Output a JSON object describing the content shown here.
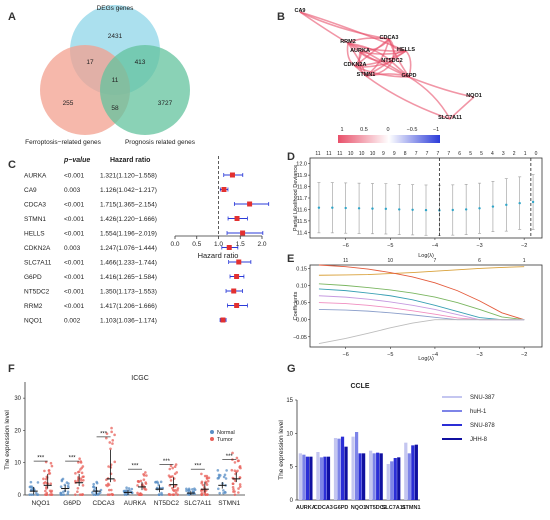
{
  "panels": {
    "A": "A",
    "B": "B",
    "C": "C",
    "D": "D",
    "E": "E",
    "F": "F",
    "G": "G"
  },
  "venn": {
    "labels": {
      "degs": "DEGs genes",
      "ferro": "Ferroptosis−related genes",
      "prog": "Prognosis related genes"
    },
    "counts": {
      "degs_only": "2431",
      "ferro_only": "255",
      "prog_only": "3727",
      "degs_ferro": "17",
      "degs_prog": "413",
      "ferro_prog": "58",
      "all": "11"
    },
    "colors": {
      "degs": "#8fd6e8",
      "ferro": "#f3a08f",
      "prog": "#63c39e"
    }
  },
  "network": {
    "nodes": [
      "CA9",
      "CDCA3",
      "RRM2",
      "AURKA",
      "HELLS",
      "NT5DC2",
      "CDKN2A",
      "STMN1",
      "G6PD",
      "SLC7A11",
      "NQO1"
    ],
    "legend_ticks": [
      "1",
      "0.5",
      "0",
      "−0.5",
      "−1"
    ],
    "colors": {
      "pos": "#e8506a",
      "neg": "#2b3bd9"
    }
  },
  "forest": {
    "col_headers": {
      "p": "p−value",
      "hr": "Hazard ratio"
    },
    "rows": [
      {
        "gene": "AURKA",
        "p": "<0.001",
        "hr": "1.321(1.120−1.558)"
      },
      {
        "gene": "CA9",
        "p": "0.003",
        "hr": "1.126(1.042−1.217)"
      },
      {
        "gene": "CDCA3",
        "p": "<0.001",
        "hr": "1.715(1.365−2.154)"
      },
      {
        "gene": "STMN1",
        "p": "<0.001",
        "hr": "1.426(1.220−1.666)"
      },
      {
        "gene": "HELLS",
        "p": "<0.001",
        "hr": "1.554(1.196−2.019)"
      },
      {
        "gene": "CDKN2A",
        "p": "0.003",
        "hr": "1.247(1.076−1.444)"
      },
      {
        "gene": "SLC7A11",
        "p": "<0.001",
        "hr": "1.466(1.233−1.744)"
      },
      {
        "gene": "G6PD",
        "p": "<0.001",
        "hr": "1.416(1.265−1.584)"
      },
      {
        "gene": "NT5DC2",
        "p": "<0.001",
        "hr": "1.350(1.173−1.553)"
      },
      {
        "gene": "RRM2",
        "p": "<0.001",
        "hr": "1.417(1.206−1.666)"
      },
      {
        "gene": "NQO1",
        "p": "0.002",
        "hr": "1.103(1.036−1.174)"
      }
    ],
    "xticks": [
      "0.0",
      "0.5",
      "1.0",
      "1.5",
      "2.0"
    ],
    "xlabel": "Hazard ratio"
  },
  "chart_data": [
    {
      "type": "scatter",
      "panel": "C",
      "xlabel": "Hazard ratio",
      "xlim": [
        0,
        2.0
      ],
      "categories": [
        "AURKA",
        "CA9",
        "CDCA3",
        "STMN1",
        "HELLS",
        "CDKN2A",
        "SLC7A11",
        "G6PD",
        "NT5DC2",
        "RRM2",
        "NQO1"
      ],
      "hr": [
        1.321,
        1.126,
        1.715,
        1.426,
        1.554,
        1.247,
        1.466,
        1.416,
        1.35,
        1.417,
        1.103
      ],
      "low": [
        1.12,
        1.042,
        1.365,
        1.22,
        1.196,
        1.076,
        1.233,
        1.265,
        1.173,
        1.206,
        1.036
      ],
      "high": [
        1.558,
        1.217,
        2.154,
        1.666,
        2.019,
        1.444,
        1.744,
        1.584,
        1.553,
        1.666,
        1.174
      ],
      "reference_line": 1.0
    },
    {
      "type": "line",
      "panel": "D",
      "xlabel": "Log(λ)",
      "ylabel": "Partial Likelihood Deviance",
      "xlim": [
        -6.8,
        -1.6
      ],
      "ylim": [
        11.35,
        12.05
      ],
      "yticks": [
        "11.4",
        "11.5",
        "11.6",
        "11.7",
        "11.8",
        "11.9",
        "12.0"
      ],
      "xticks": [
        "−6",
        "−5",
        "−4",
        "−3",
        "−2"
      ],
      "top_counts": [
        "11",
        "11",
        "11",
        "10",
        "10",
        "10",
        "9",
        "9",
        "8",
        "7",
        "7",
        "7",
        "7",
        "6",
        "5",
        "5",
        "4",
        "3",
        "2",
        "1",
        "0"
      ],
      "x": [
        -6.6,
        -6.3,
        -6.0,
        -5.7,
        -5.4,
        -5.1,
        -4.8,
        -4.5,
        -4.2,
        -3.9,
        -3.6,
        -3.3,
        -3.0,
        -2.7,
        -2.4,
        -2.1,
        -1.8
      ],
      "y": [
        11.615,
        11.615,
        11.612,
        11.61,
        11.607,
        11.605,
        11.6,
        11.597,
        11.594,
        11.592,
        11.595,
        11.6,
        11.61,
        11.625,
        11.64,
        11.655,
        11.665
      ],
      "err": [
        0.22,
        0.22,
        0.22,
        0.22,
        0.22,
        0.22,
        0.22,
        0.22,
        0.22,
        0.22,
        0.22,
        0.22,
        0.22,
        0.22,
        0.23,
        0.23,
        0.24
      ],
      "vlines": [
        -3.9,
        -1.85
      ]
    },
    {
      "type": "line",
      "panel": "E",
      "xlabel": "Log(λ)",
      "ylabel": "Coefficients",
      "xlim": [
        -6.8,
        -1.6
      ],
      "ylim": [
        -0.08,
        0.16
      ],
      "yticks": [
        "−0.05",
        "0.00",
        "0.05",
        "0.10",
        "0.15"
      ],
      "xticks": [
        "−6",
        "−5",
        "−4",
        "−3",
        "−2"
      ],
      "top_counts": [
        "11",
        "10",
        "7",
        "6",
        "1"
      ],
      "x": [
        -6.6,
        -6.0,
        -5.5,
        -5.0,
        -4.5,
        -4.0,
        -3.5,
        -3.0,
        -2.5,
        -2.0
      ],
      "series": [
        {
          "color": "#d9a13a",
          "values": [
            0.13,
            0.131,
            0.132,
            0.135,
            0.138,
            0.142,
            0.146,
            0.15,
            0.153,
            0.155
          ]
        },
        {
          "color": "#e45b3c",
          "values": [
            0.16,
            0.155,
            0.148,
            0.138,
            0.125,
            0.108,
            0.085,
            0.055,
            0.02,
            0.0
          ]
        },
        {
          "color": "#7bb661",
          "values": [
            0.105,
            0.1,
            0.094,
            0.087,
            0.078,
            0.066,
            0.05,
            0.03,
            0.008,
            0.0
          ]
        },
        {
          "color": "#3aa0b4",
          "values": [
            0.09,
            0.085,
            0.078,
            0.07,
            0.058,
            0.042,
            0.024,
            0.006,
            0.0,
            0.0
          ]
        },
        {
          "color": "#c69ae0",
          "values": [
            0.07,
            0.066,
            0.06,
            0.052,
            0.042,
            0.03,
            0.015,
            0.0,
            0.0,
            0.0
          ]
        },
        {
          "color": "#f08ec0",
          "values": [
            0.05,
            0.047,
            0.042,
            0.035,
            0.026,
            0.016,
            0.005,
            0.0,
            0.0,
            0.0
          ]
        },
        {
          "color": "#8da0cb",
          "values": [
            0.03,
            0.028,
            0.025,
            0.02,
            0.014,
            0.007,
            0.0,
            0.0,
            0.0,
            0.0
          ]
        },
        {
          "color": "#bdbdbd",
          "values": [
            -0.07,
            -0.055,
            -0.04,
            -0.024,
            -0.01,
            0.0,
            0.0,
            0.0,
            0.0,
            0.0
          ]
        }
      ]
    },
    {
      "type": "scatter",
      "panel": "F",
      "title": "ICGC",
      "ylabel": "The expression level",
      "ylim": [
        0,
        35
      ],
      "yticks": [
        "0",
        "10",
        "20",
        "30"
      ],
      "categories": [
        "NQO1",
        "G6PD",
        "CDCA3",
        "AURKA",
        "NT5DC2",
        "SLC7A11",
        "STMN1"
      ],
      "series": [
        {
          "name": "Normal",
          "color": "#5a8fc6",
          "medians": [
            1.2,
            2.0,
            1.2,
            0.8,
            1.8,
            0.6,
            3.0
          ],
          "iqr_high": [
            2.5,
            3.0,
            2.5,
            1.5,
            3.0,
            1.2,
            4.0
          ]
        },
        {
          "name": "Tumor",
          "color": "#e8605a",
          "medians": [
            3.0,
            3.8,
            5.0,
            2.5,
            3.2,
            1.8,
            5.0
          ],
          "iqr_high": [
            6.5,
            6.5,
            14.0,
            4.0,
            5.5,
            4.0,
            7.0
          ]
        }
      ],
      "significance": [
        "***",
        "***",
        "***",
        "***",
        "***",
        "***",
        "***"
      ]
    },
    {
      "type": "bar",
      "panel": "G",
      "title": "CCLE",
      "ylabel": "The expression level",
      "ylim": [
        0,
        15
      ],
      "yticks": [
        "0",
        "5",
        "10",
        "15"
      ],
      "categories": [
        "AURKA",
        "CDCA3",
        "G6PD",
        "NQO1",
        "NT5DC2",
        "SLC7A11",
        "STMN1"
      ],
      "series": [
        {
          "name": "SNU-387",
          "color": "#c4c6f0",
          "values": [
            7.0,
            7.2,
            9.3,
            9.5,
            7.4,
            5.4,
            8.6
          ]
        },
        {
          "name": "huH-1",
          "color": "#7d84e8",
          "values": [
            6.8,
            6.4,
            9.2,
            10.2,
            7.0,
            5.8,
            7.0
          ]
        },
        {
          "name": "SNU-878",
          "color": "#2b2ed6",
          "values": [
            6.5,
            6.5,
            9.5,
            7.0,
            7.1,
            6.3,
            8.2
          ]
        },
        {
          "name": "JHH-8",
          "color": "#1010a0",
          "values": [
            6.5,
            6.5,
            8.0,
            7.0,
            7.0,
            6.4,
            8.3
          ]
        }
      ]
    }
  ],
  "f_legend": {
    "normal": "Normal",
    "tumor": "Tumor"
  },
  "axis_texts": {
    "log_lambda": "Log(λ)",
    "pld": "Partial Likelihood Deviance",
    "coef": "Coefficients",
    "expr": "The expression level",
    "icgc": "ICGC",
    "ccle": "CCLE"
  },
  "g_legend": [
    "SNU-387",
    "huH-1",
    "SNU-878",
    "JHH-8"
  ]
}
